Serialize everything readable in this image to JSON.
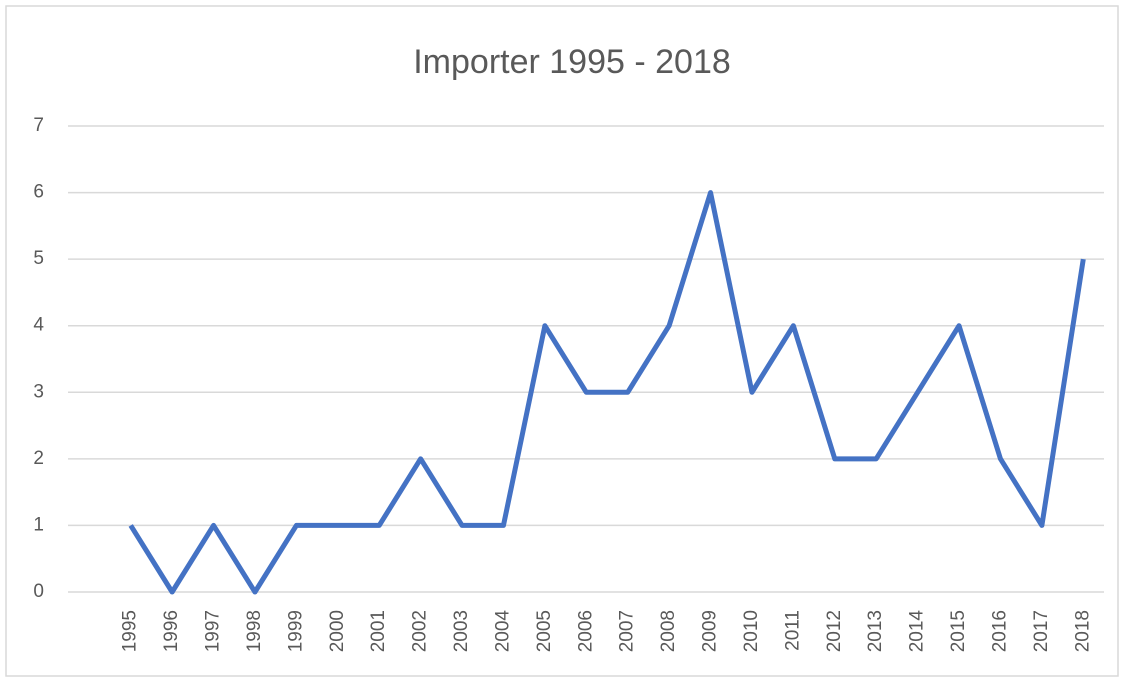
{
  "chart_data": {
    "type": "line",
    "title": "Importer 1995 - 2018",
    "categories": [
      "1995",
      "1996",
      "1997",
      "1998",
      "1999",
      "2000",
      "2001",
      "2002",
      "2003",
      "2004",
      "2005",
      "2006",
      "2007",
      "2008",
      "2009",
      "2010",
      "2011",
      "2012",
      "2013",
      "2014",
      "2015",
      "2016",
      "2017",
      "2018"
    ],
    "series": [
      {
        "name": "Importer",
        "color": "#4472c4",
        "values": [
          1,
          0,
          1,
          0,
          1,
          1,
          1,
          2,
          1,
          1,
          4,
          3,
          3,
          4,
          6,
          3,
          4,
          2,
          2,
          3,
          4,
          2,
          1,
          5
        ]
      }
    ],
    "ylim": [
      0,
      7
    ],
    "yticks": [
      0,
      1,
      2,
      3,
      4,
      5,
      6,
      7
    ],
    "grid": true
  }
}
